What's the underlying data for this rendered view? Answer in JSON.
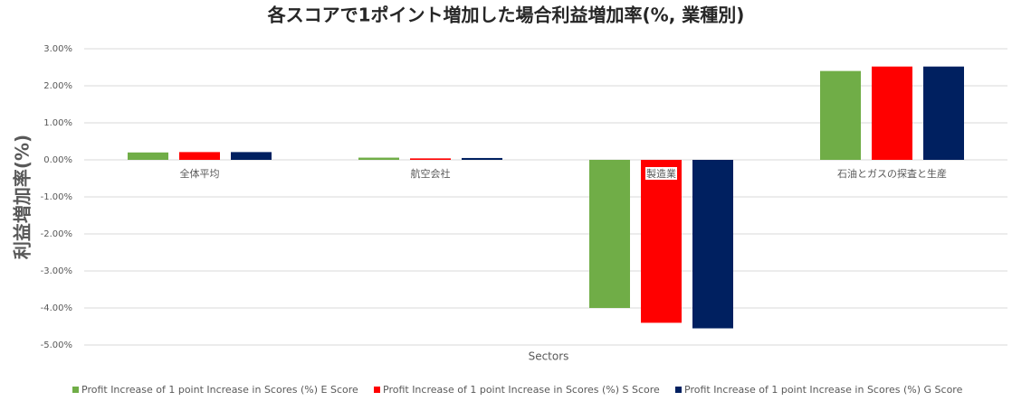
{
  "chart_data": {
    "type": "bar",
    "title": "各スコアで1ポイント増加した場合利益増加率(%, 業種別)",
    "x_label": "Sectors",
    "y_label": "利益増加率(%)",
    "categories": [
      "全体平均",
      "航空会社",
      "製造業",
      "石油とガスの探査と生産"
    ],
    "series": [
      {
        "name": "Profit Increase of 1 point Increase in Scores (%) E Score",
        "color": "#70ad47",
        "values": [
          0.2,
          0.06,
          -4.0,
          2.4
        ]
      },
      {
        "name": "Profit Increase of 1 point Increase in Scores (%) S Score",
        "color": "#ff0000",
        "values": [
          0.21,
          0.04,
          -4.4,
          2.52
        ]
      },
      {
        "name": "Profit Increase of 1 point Increase in Scores (%) G Score",
        "color": "#002060",
        "values": [
          0.21,
          0.05,
          -4.55,
          2.52
        ]
      }
    ],
    "ylim": [
      -5,
      3
    ],
    "yticks": [
      {
        "value": 3,
        "label": "3.00%"
      },
      {
        "value": 2,
        "label": "2.00%"
      },
      {
        "value": 1,
        "label": "1.00%"
      },
      {
        "value": 0,
        "label": "0.00%"
      },
      {
        "value": -1,
        "label": "-1.00%"
      },
      {
        "value": -2,
        "label": "-2.00%"
      },
      {
        "value": -3,
        "label": "-3.00%"
      },
      {
        "value": -4,
        "label": "-4.00%"
      },
      {
        "value": -5,
        "label": "-5.00%"
      }
    ],
    "grid": true,
    "legend": "bottom"
  }
}
